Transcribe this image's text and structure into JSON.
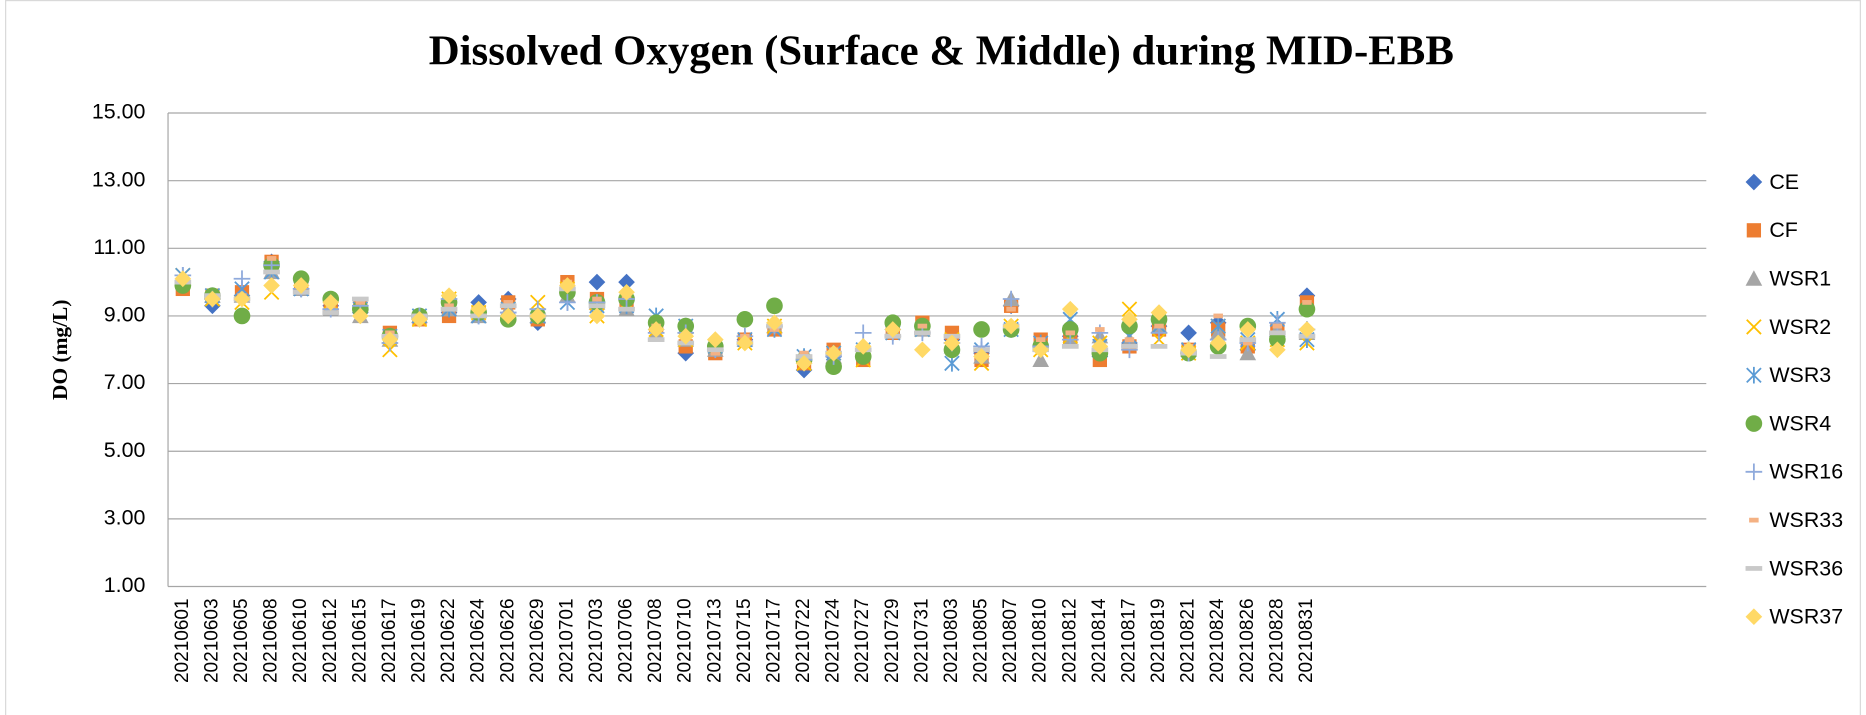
{
  "chart_data": {
    "type": "scatter",
    "title": "Dissolved Oxygen (Surface & Middle) during MID-EBB",
    "y_label": "DO (mg/L)",
    "categories": [
      "20210601",
      "20210603",
      "20210605",
      "20210608",
      "20210610",
      "20210612",
      "20210615",
      "20210617",
      "20210619",
      "20210622",
      "20210624",
      "20210626",
      "20210629",
      "20210701",
      "20210703",
      "20210706",
      "20210708",
      "20210710",
      "20210713",
      "20210715",
      "20210717",
      "20210722",
      "20210724",
      "20210727",
      "20210729",
      "20210731",
      "20210803",
      "20210805",
      "20210807",
      "20210810",
      "20210812",
      "20210814",
      "20210817",
      "20210819",
      "20210821",
      "20210824",
      "20210826",
      "20210828",
      "20210831",
      null,
      null,
      null,
      null,
      null,
      null,
      null,
      null,
      null,
      null,
      null,
      null,
      null
    ],
    "ylim": [
      1,
      15
    ],
    "yticks": [
      {
        "value": 1,
        "label": "1.00"
      },
      {
        "value": 3,
        "label": "3.00"
      },
      {
        "value": 5,
        "label": "5.00"
      },
      {
        "value": 7,
        "label": "7.00"
      },
      {
        "value": 9,
        "label": "9.00"
      },
      {
        "value": 11,
        "label": "11.00"
      },
      {
        "value": 13,
        "label": "13.00"
      },
      {
        "value": 15,
        "label": "15.00"
      }
    ],
    "grid": true,
    "legend": "right",
    "series": [
      {
        "name": "CE",
        "color": "#4472c4",
        "marker": "diamond",
        "values": [
          9.9,
          9.3,
          9.6,
          10.6,
          9.8,
          9.3,
          9.1,
          8.4,
          8.9,
          9.1,
          9.4,
          9.5,
          8.8,
          9.8,
          10.0,
          10.0,
          8.6,
          7.9,
          8.0,
          8.3,
          8.7,
          7.4,
          7.8,
          7.8,
          8.6,
          8.7,
          8.3,
          7.9,
          9.3,
          8.1,
          8.4,
          7.8,
          8.2,
          8.7,
          8.5,
          8.8,
          8.0,
          8.4,
          9.6,
          null,
          null,
          null,
          null,
          null,
          null,
          null,
          null,
          null,
          null,
          null,
          null,
          null
        ]
      },
      {
        "name": "CF",
        "color": "#ed7d31",
        "marker": "square",
        "values": [
          9.8,
          9.6,
          9.7,
          10.6,
          9.9,
          9.3,
          9.3,
          8.5,
          8.9,
          9.0,
          9.1,
          9.4,
          8.9,
          10.0,
          9.5,
          9.3,
          8.7,
          8.1,
          7.9,
          8.3,
          8.6,
          7.6,
          8.0,
          7.7,
          8.5,
          8.8,
          8.5,
          7.7,
          9.3,
          8.3,
          8.3,
          7.7,
          8.1,
          8.6,
          8.0,
          8.6,
          8.1,
          8.6,
          9.4,
          null,
          null,
          null,
          null,
          null,
          null,
          null,
          null,
          null,
          null,
          null,
          null,
          null
        ]
      },
      {
        "name": "WSR1",
        "color": "#a5a5a5",
        "marker": "triangle",
        "values": [
          10.1,
          9.6,
          9.6,
          10.3,
          9.8,
          9.2,
          9.0,
          8.3,
          9.0,
          9.2,
          9.0,
          9.2,
          9.0,
          9.6,
          9.4,
          9.2,
          8.5,
          8.3,
          8.0,
          8.3,
          8.7,
          7.8,
          7.8,
          8.0,
          8.6,
          8.6,
          8.1,
          7.8,
          9.5,
          7.7,
          8.3,
          8.4,
          8.3,
          8.7,
          8.0,
          8.5,
          7.9,
          8.6,
          8.5,
          null,
          null,
          null,
          null,
          null,
          null,
          null,
          null,
          null,
          null,
          null,
          null,
          null
        ]
      },
      {
        "name": "WSR2",
        "color": "#ffc000",
        "marker": "x",
        "values": [
          10.2,
          9.5,
          9.4,
          9.7,
          9.9,
          9.4,
          9.2,
          8.0,
          8.9,
          9.5,
          9.1,
          9.2,
          9.4,
          9.8,
          9.0,
          9.4,
          8.6,
          8.3,
          8.1,
          8.2,
          8.7,
          7.6,
          7.9,
          7.7,
          8.6,
          8.6,
          8.3,
          7.6,
          8.7,
          8.0,
          8.4,
          8.2,
          9.2,
          8.3,
          7.9,
          8.7,
          8.2,
          8.3,
          8.2,
          null,
          null,
          null,
          null,
          null,
          null,
          null,
          null,
          null,
          null,
          null,
          null,
          null
        ]
      },
      {
        "name": "WSR3",
        "color": "#5b9bd5",
        "marker": "asterisk",
        "values": [
          10.2,
          9.6,
          9.8,
          10.3,
          9.8,
          9.3,
          9.2,
          8.4,
          9.0,
          9.2,
          9.0,
          9.2,
          9.0,
          9.4,
          9.3,
          9.3,
          9.0,
          8.7,
          8.1,
          8.3,
          8.6,
          7.8,
          7.9,
          8.0,
          8.5,
          8.6,
          7.6,
          8.0,
          8.6,
          8.2,
          8.9,
          8.1,
          8.4,
          8.7,
          8.0,
          8.7,
          8.3,
          8.9,
          8.3,
          null,
          null,
          null,
          null,
          null,
          null,
          null,
          null,
          null,
          null,
          null,
          null,
          null
        ]
      },
      {
        "name": "WSR4",
        "color": "#70ad47",
        "marker": "circle",
        "values": [
          9.9,
          9.6,
          9.0,
          10.5,
          10.1,
          9.5,
          9.2,
          8.4,
          9.0,
          9.4,
          9.1,
          8.9,
          9.0,
          9.7,
          9.4,
          9.5,
          8.8,
          8.7,
          8.1,
          8.9,
          9.3,
          7.7,
          7.5,
          7.8,
          8.8,
          8.7,
          8.0,
          8.6,
          8.6,
          8.1,
          8.6,
          7.9,
          8.7,
          8.9,
          7.9,
          8.1,
          8.7,
          8.3,
          9.2,
          null,
          null,
          null,
          null,
          null,
          null,
          null,
          null,
          null,
          null,
          null,
          null,
          null
        ]
      },
      {
        "name": "WSR16",
        "color": "#8faadc",
        "marker": "plus",
        "values": [
          10.2,
          9.5,
          10.1,
          10.5,
          9.8,
          9.2,
          9.3,
          8.2,
          9.0,
          9.5,
          9.0,
          9.1,
          9.2,
          9.4,
          9.4,
          9.5,
          8.5,
          8.5,
          8.0,
          8.4,
          8.7,
          7.7,
          7.8,
          8.5,
          8.4,
          8.5,
          8.2,
          8.1,
          9.5,
          8.1,
          8.3,
          8.5,
          8.0,
          8.5,
          7.9,
          8.3,
          8.2,
          8.8,
          8.6,
          null,
          null,
          null,
          null,
          null,
          null,
          null,
          null,
          null,
          null,
          null,
          null,
          null
        ]
      },
      {
        "name": "WSR33",
        "color": "#f4b183",
        "marker": "dash",
        "values": [
          10.0,
          9.5,
          9.6,
          10.7,
          9.9,
          9.3,
          9.4,
          8.5,
          9.0,
          9.3,
          9.1,
          9.4,
          9.0,
          10.0,
          9.5,
          9.6,
          8.7,
          8.3,
          7.9,
          8.4,
          8.6,
          7.9,
          8.0,
          8.0,
          8.6,
          8.7,
          8.3,
          7.8,
          9.2,
          8.3,
          8.5,
          8.6,
          8.3,
          8.7,
          8.1,
          9.0,
          8.2,
          8.7,
          9.4,
          null,
          null,
          null,
          null,
          null,
          null,
          null,
          null,
          null,
          null,
          null,
          null,
          null
        ]
      },
      {
        "name": "WSR36",
        "color": "#c9c9c9",
        "marker": "longdash",
        "values": [
          10.0,
          9.6,
          9.5,
          10.3,
          9.7,
          9.1,
          9.5,
          8.4,
          9.0,
          9.2,
          9.0,
          9.3,
          9.0,
          9.8,
          9.3,
          9.2,
          8.3,
          8.2,
          8.0,
          8.2,
          8.7,
          7.8,
          7.9,
          8.0,
          8.4,
          8.5,
          8.4,
          8.0,
          8.7,
          8.0,
          8.1,
          8.0,
          8.1,
          8.1,
          7.9,
          7.8,
          8.3,
          8.5,
          8.4,
          null,
          null,
          null,
          null,
          null,
          null,
          null,
          null,
          null,
          null,
          null,
          null,
          null
        ]
      },
      {
        "name": "WSR37",
        "color": "#ffd966",
        "marker": "diamond",
        "values": [
          10.1,
          9.5,
          9.5,
          9.9,
          9.9,
          9.4,
          9.0,
          8.3,
          8.9,
          9.6,
          9.2,
          9.0,
          9.0,
          9.9,
          9.0,
          9.7,
          8.6,
          8.4,
          8.3,
          8.2,
          8.8,
          7.6,
          7.9,
          8.1,
          8.6,
          8.0,
          8.2,
          7.8,
          8.7,
          8.0,
          9.2,
          8.1,
          8.9,
          9.1,
          8.0,
          8.2,
          8.6,
          8.0,
          8.6,
          null,
          null,
          null,
          null,
          null,
          null,
          null,
          null,
          null,
          null,
          null,
          null,
          null
        ]
      }
    ]
  }
}
